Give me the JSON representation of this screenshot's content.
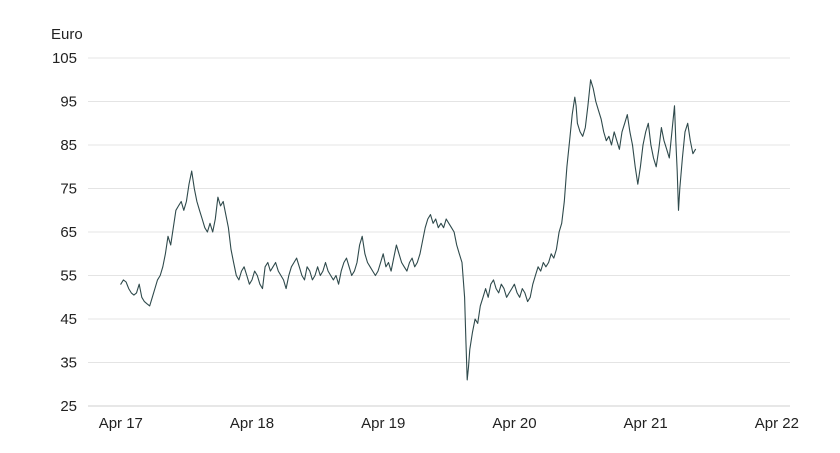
{
  "chart_data": {
    "type": "line",
    "title": "",
    "xlabel": "",
    "ylabel": "Euro",
    "ylim": [
      25,
      105
    ],
    "y_ticks": [
      105,
      95,
      85,
      75,
      65,
      55,
      45,
      35,
      25
    ],
    "x_ticks": [
      {
        "label": "Apr 17",
        "t": 2017.25
      },
      {
        "label": "Apr 18",
        "t": 2018.25
      },
      {
        "label": "Apr 19",
        "t": 2019.25
      },
      {
        "label": "Apr 20",
        "t": 2020.25
      },
      {
        "label": "Apr 21",
        "t": 2021.25
      },
      {
        "label": "Apr 22",
        "t": 2022.25
      }
    ],
    "grid": "horizontal",
    "legend": "none",
    "line_color": "#2f4a4c",
    "series": [
      {
        "points": [
          [
            2017.25,
            53
          ],
          [
            2017.27,
            54
          ],
          [
            2017.29,
            53.5
          ],
          [
            2017.31,
            52
          ],
          [
            2017.33,
            51
          ],
          [
            2017.35,
            50.5
          ],
          [
            2017.37,
            51
          ],
          [
            2017.39,
            53
          ],
          [
            2017.41,
            50
          ],
          [
            2017.43,
            49
          ],
          [
            2017.45,
            48.5
          ],
          [
            2017.47,
            48
          ],
          [
            2017.49,
            50
          ],
          [
            2017.51,
            52
          ],
          [
            2017.53,
            54
          ],
          [
            2017.55,
            55
          ],
          [
            2017.57,
            57
          ],
          [
            2017.59,
            60
          ],
          [
            2017.61,
            64
          ],
          [
            2017.63,
            62
          ],
          [
            2017.65,
            66
          ],
          [
            2017.67,
            70
          ],
          [
            2017.69,
            71
          ],
          [
            2017.71,
            72
          ],
          [
            2017.73,
            70
          ],
          [
            2017.75,
            72
          ],
          [
            2017.77,
            76
          ],
          [
            2017.79,
            79
          ],
          [
            2017.81,
            75
          ],
          [
            2017.83,
            72
          ],
          [
            2017.85,
            70
          ],
          [
            2017.87,
            68
          ],
          [
            2017.89,
            66
          ],
          [
            2017.91,
            65
          ],
          [
            2017.93,
            67
          ],
          [
            2017.95,
            65
          ],
          [
            2017.97,
            68
          ],
          [
            2017.99,
            73
          ],
          [
            2018.01,
            71
          ],
          [
            2018.03,
            72
          ],
          [
            2018.05,
            69
          ],
          [
            2018.07,
            66
          ],
          [
            2018.09,
            61
          ],
          [
            2018.11,
            58
          ],
          [
            2018.13,
            55
          ],
          [
            2018.15,
            54
          ],
          [
            2018.17,
            56
          ],
          [
            2018.19,
            57
          ],
          [
            2018.21,
            55
          ],
          [
            2018.23,
            53
          ],
          [
            2018.25,
            54
          ],
          [
            2018.27,
            56
          ],
          [
            2018.29,
            55
          ],
          [
            2018.31,
            53
          ],
          [
            2018.33,
            52
          ],
          [
            2018.35,
            57
          ],
          [
            2018.37,
            58
          ],
          [
            2018.39,
            56
          ],
          [
            2018.41,
            57
          ],
          [
            2018.43,
            58
          ],
          [
            2018.45,
            56
          ],
          [
            2018.47,
            55
          ],
          [
            2018.49,
            54
          ],
          [
            2018.51,
            52
          ],
          [
            2018.53,
            55
          ],
          [
            2018.55,
            57
          ],
          [
            2018.57,
            58
          ],
          [
            2018.59,
            59
          ],
          [
            2018.61,
            57
          ],
          [
            2018.63,
            55
          ],
          [
            2018.65,
            54
          ],
          [
            2018.67,
            57
          ],
          [
            2018.69,
            56
          ],
          [
            2018.71,
            54
          ],
          [
            2018.73,
            55
          ],
          [
            2018.75,
            57
          ],
          [
            2018.77,
            55
          ],
          [
            2018.79,
            56
          ],
          [
            2018.81,
            58
          ],
          [
            2018.83,
            56
          ],
          [
            2018.85,
            55
          ],
          [
            2018.87,
            54
          ],
          [
            2018.89,
            55
          ],
          [
            2018.91,
            53
          ],
          [
            2018.93,
            56
          ],
          [
            2018.95,
            58
          ],
          [
            2018.97,
            59
          ],
          [
            2018.99,
            57
          ],
          [
            2019.01,
            55
          ],
          [
            2019.03,
            56
          ],
          [
            2019.05,
            58
          ],
          [
            2019.07,
            62
          ],
          [
            2019.09,
            64
          ],
          [
            2019.11,
            60
          ],
          [
            2019.13,
            58
          ],
          [
            2019.15,
            57
          ],
          [
            2019.17,
            56
          ],
          [
            2019.19,
            55
          ],
          [
            2019.21,
            56
          ],
          [
            2019.23,
            58
          ],
          [
            2019.25,
            60
          ],
          [
            2019.27,
            57
          ],
          [
            2019.29,
            58
          ],
          [
            2019.31,
            56
          ],
          [
            2019.33,
            59
          ],
          [
            2019.35,
            62
          ],
          [
            2019.37,
            60
          ],
          [
            2019.39,
            58
          ],
          [
            2019.41,
            57
          ],
          [
            2019.43,
            56
          ],
          [
            2019.45,
            58
          ],
          [
            2019.47,
            59
          ],
          [
            2019.49,
            57
          ],
          [
            2019.51,
            58
          ],
          [
            2019.53,
            60
          ],
          [
            2019.55,
            63
          ],
          [
            2019.57,
            66
          ],
          [
            2019.59,
            68
          ],
          [
            2019.61,
            69
          ],
          [
            2019.63,
            67
          ],
          [
            2019.65,
            68
          ],
          [
            2019.67,
            66
          ],
          [
            2019.69,
            67
          ],
          [
            2019.71,
            66
          ],
          [
            2019.73,
            68
          ],
          [
            2019.75,
            67
          ],
          [
            2019.77,
            66
          ],
          [
            2019.79,
            65
          ],
          [
            2019.81,
            62
          ],
          [
            2019.83,
            60
          ],
          [
            2019.85,
            58
          ],
          [
            2019.87,
            50
          ],
          [
            2019.88,
            40
          ],
          [
            2019.89,
            31
          ],
          [
            2019.9,
            34
          ],
          [
            2019.91,
            38
          ],
          [
            2019.93,
            42
          ],
          [
            2019.95,
            45
          ],
          [
            2019.97,
            44
          ],
          [
            2019.99,
            48
          ],
          [
            2020.01,
            50
          ],
          [
            2020.03,
            52
          ],
          [
            2020.05,
            50
          ],
          [
            2020.07,
            53
          ],
          [
            2020.09,
            54
          ],
          [
            2020.11,
            52
          ],
          [
            2020.13,
            51
          ],
          [
            2020.15,
            53
          ],
          [
            2020.17,
            52
          ],
          [
            2020.19,
            50
          ],
          [
            2020.21,
            51
          ],
          [
            2020.23,
            52
          ],
          [
            2020.25,
            53
          ],
          [
            2020.27,
            51
          ],
          [
            2020.29,
            50
          ],
          [
            2020.31,
            52
          ],
          [
            2020.33,
            51
          ],
          [
            2020.35,
            49
          ],
          [
            2020.37,
            50
          ],
          [
            2020.39,
            53
          ],
          [
            2020.41,
            55
          ],
          [
            2020.43,
            57
          ],
          [
            2020.45,
            56
          ],
          [
            2020.47,
            58
          ],
          [
            2020.49,
            57
          ],
          [
            2020.51,
            58
          ],
          [
            2020.53,
            60
          ],
          [
            2020.55,
            59
          ],
          [
            2020.57,
            61
          ],
          [
            2020.59,
            65
          ],
          [
            2020.61,
            67
          ],
          [
            2020.63,
            72
          ],
          [
            2020.64,
            76
          ],
          [
            2020.65,
            80
          ],
          [
            2020.67,
            86
          ],
          [
            2020.69,
            92
          ],
          [
            2020.71,
            96
          ],
          [
            2020.72,
            94
          ],
          [
            2020.73,
            90
          ],
          [
            2020.75,
            88
          ],
          [
            2020.77,
            87
          ],
          [
            2020.79,
            89
          ],
          [
            2020.81,
            94
          ],
          [
            2020.83,
            100
          ],
          [
            2020.85,
            98
          ],
          [
            2020.87,
            95
          ],
          [
            2020.89,
            93
          ],
          [
            2020.91,
            91
          ],
          [
            2020.93,
            88
          ],
          [
            2020.95,
            86
          ],
          [
            2020.97,
            87
          ],
          [
            2020.99,
            85
          ],
          [
            2021.01,
            88
          ],
          [
            2021.03,
            86
          ],
          [
            2021.05,
            84
          ],
          [
            2021.07,
            88
          ],
          [
            2021.09,
            90
          ],
          [
            2021.11,
            92
          ],
          [
            2021.13,
            88
          ],
          [
            2021.15,
            85
          ],
          [
            2021.17,
            80
          ],
          [
            2021.19,
            76
          ],
          [
            2021.21,
            80
          ],
          [
            2021.23,
            85
          ],
          [
            2021.25,
            88
          ],
          [
            2021.27,
            90
          ],
          [
            2021.29,
            85
          ],
          [
            2021.31,
            82
          ],
          [
            2021.33,
            80
          ],
          [
            2021.35,
            84
          ],
          [
            2021.37,
            89
          ],
          [
            2021.39,
            86
          ],
          [
            2021.41,
            84
          ],
          [
            2021.43,
            82
          ],
          [
            2021.45,
            88
          ],
          [
            2021.47,
            94
          ],
          [
            2021.48,
            86
          ],
          [
            2021.49,
            79
          ],
          [
            2021.5,
            70
          ],
          [
            2021.51,
            75
          ],
          [
            2021.53,
            82
          ],
          [
            2021.55,
            88
          ],
          [
            2021.57,
            90
          ],
          [
            2021.59,
            86
          ],
          [
            2021.61,
            83
          ],
          [
            2021.63,
            84
          ]
        ]
      }
    ]
  }
}
